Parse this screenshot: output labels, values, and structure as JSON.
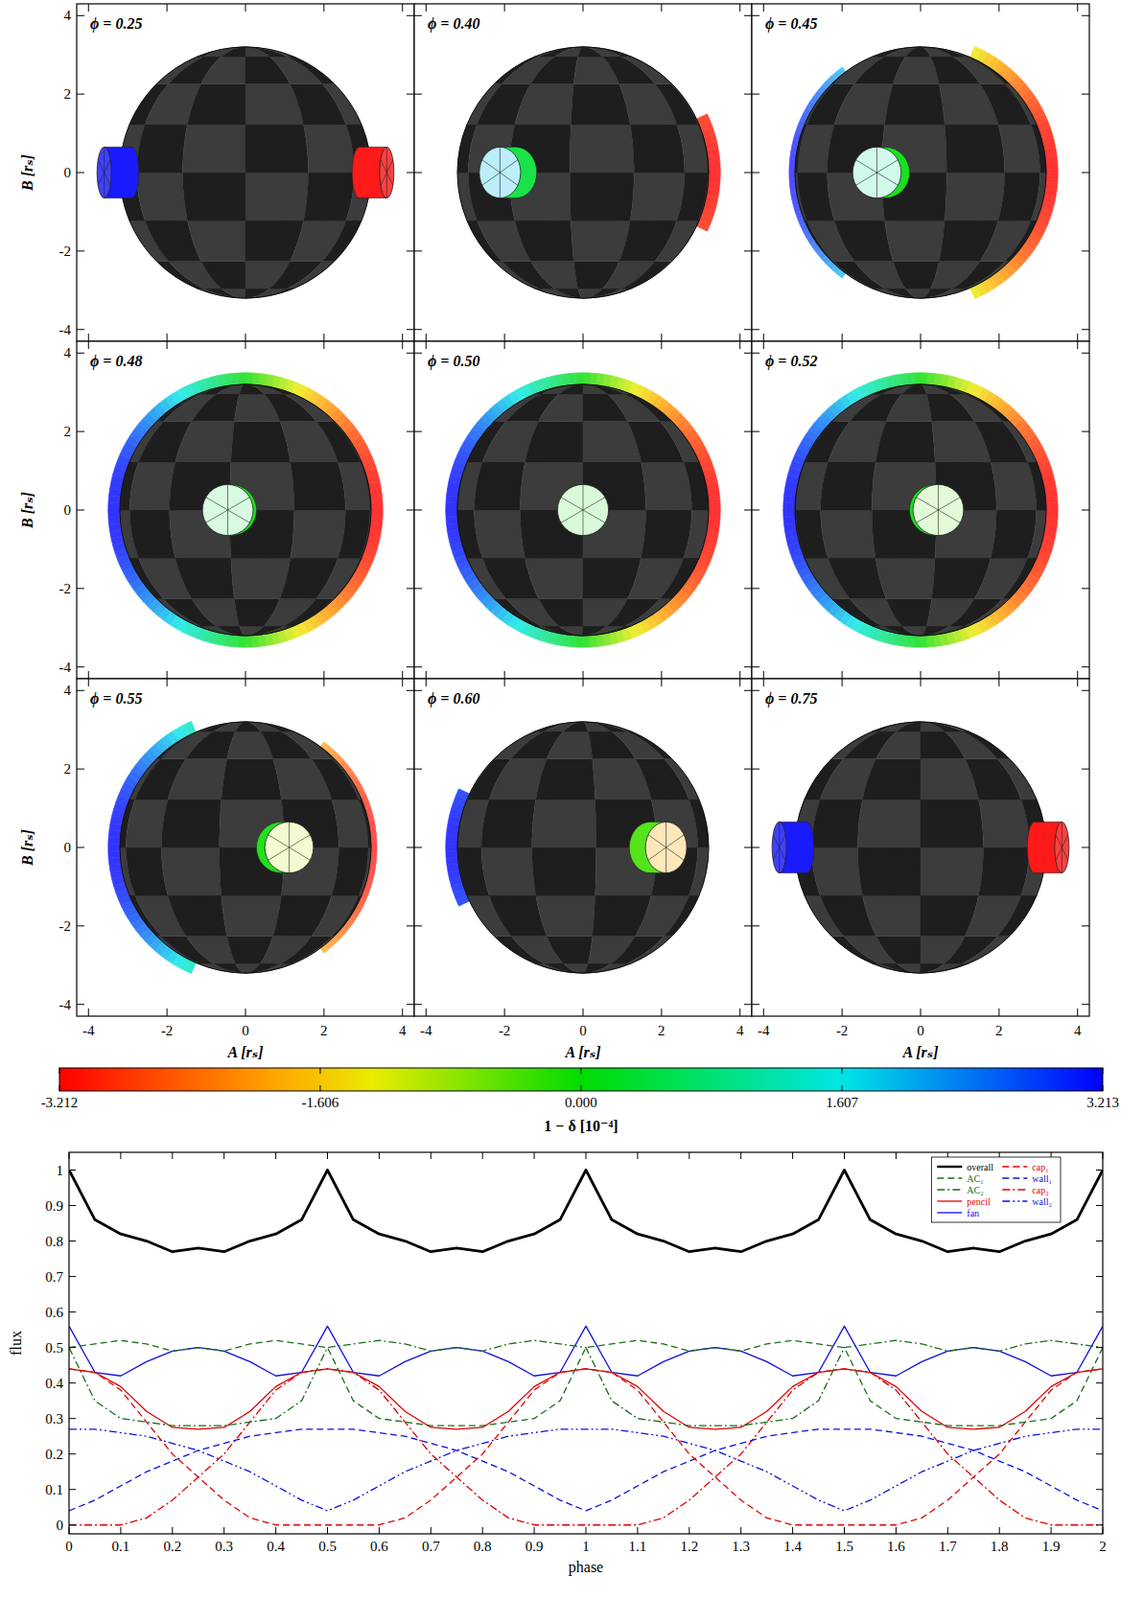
{
  "panels": {
    "items": [
      {
        "label": "ϕ = 0.25",
        "phase": 0.25
      },
      {
        "label": "ϕ = 0.40",
        "phase": 0.4
      },
      {
        "label": "ϕ = 0.45",
        "phase": 0.45
      },
      {
        "label": "ϕ = 0.48",
        "phase": 0.48
      },
      {
        "label": "ϕ = 0.50",
        "phase": 0.5
      },
      {
        "label": "ϕ = 0.52",
        "phase": 0.52
      },
      {
        "label": "ϕ = 0.55",
        "phase": 0.55
      },
      {
        "label": "ϕ = 0.60",
        "phase": 0.6
      },
      {
        "label": "ϕ = 0.75",
        "phase": 0.75
      }
    ],
    "xlabel": "A [rₛ]",
    "ylabel": "B [rₛ]",
    "xlim": [
      -4.3,
      4.3
    ],
    "ylim": [
      -4.3,
      4.3
    ],
    "xticks": [
      -4,
      -2,
      0,
      2,
      4
    ],
    "yticks": [
      -4,
      -2,
      0,
      2,
      4
    ]
  },
  "colorbar": {
    "label": "1 − δ [10⁻⁴]",
    "range": [
      -3.212,
      3.213
    ],
    "ticks": [
      -3.212,
      -1.606,
      {
        "value": 0,
        "label": "0.000"
      },
      1.607,
      3.213
    ]
  },
  "chart_data": {
    "type": "line",
    "xlabel": "phase",
    "ylabel": "flux",
    "x": [
      0,
      0.05,
      0.1,
      0.15,
      0.2,
      0.25,
      0.3,
      0.35,
      0.4,
      0.45,
      0.5,
      0.55,
      0.6,
      0.65,
      0.7,
      0.75,
      0.8,
      0.85,
      0.9,
      0.95,
      1,
      1.05,
      1.1,
      1.15,
      1.2,
      1.25,
      1.3,
      1.35,
      1.4,
      1.45,
      1.5,
      1.55,
      1.6,
      1.65,
      1.7,
      1.75,
      1.8,
      1.85,
      1.9,
      1.95,
      2
    ],
    "xlim": [
      0,
      2
    ],
    "ylim": [
      -0.025,
      1.05
    ],
    "xticks": [
      0,
      0.1,
      0.2,
      0.3,
      0.4,
      0.5,
      0.6,
      0.7,
      0.8,
      0.9,
      1,
      1.1,
      1.2,
      1.3,
      1.4,
      1.5,
      1.6,
      1.7,
      1.8,
      1.9,
      2
    ],
    "yticks": [
      0,
      0.1,
      0.2,
      0.3,
      0.4,
      0.5,
      0.6,
      0.7,
      0.8,
      0.9,
      1
    ],
    "legend": "upper right",
    "series": [
      {
        "name": "overall",
        "color": "#000000",
        "line_style": "solid",
        "values": [
          1.0,
          0.86,
          0.82,
          0.8,
          0.77,
          0.78,
          0.77,
          0.8,
          0.82,
          0.86,
          1.0,
          0.86,
          0.82,
          0.8,
          0.77,
          0.78,
          0.77,
          0.8,
          0.82,
          0.86,
          1.0,
          0.86,
          0.82,
          0.8,
          0.77,
          0.78,
          0.77,
          0.8,
          0.82,
          0.86,
          1.0,
          0.86,
          0.82,
          0.8,
          0.77,
          0.78,
          0.77,
          0.8,
          0.82,
          0.86,
          1.0
        ]
      },
      {
        "name": "AC₁",
        "color": "#1a6e1a",
        "line_style": "dashed",
        "values": [
          0.5,
          0.51,
          0.52,
          0.51,
          0.49,
          0.5,
          0.49,
          0.51,
          0.52,
          0.51,
          0.5,
          0.35,
          0.3,
          0.29,
          0.28,
          0.28,
          0.28,
          0.29,
          0.3,
          0.35,
          0.5,
          0.51,
          0.52,
          0.51,
          0.49,
          0.5,
          0.49,
          0.51,
          0.52,
          0.51,
          0.5,
          0.35,
          0.3,
          0.29,
          0.28,
          0.28,
          0.28,
          0.29,
          0.3,
          0.35,
          0.5
        ]
      },
      {
        "name": "AC₂",
        "color": "#1a6e1a",
        "line_style": "dashdot",
        "values": [
          0.5,
          0.35,
          0.3,
          0.29,
          0.28,
          0.28,
          0.28,
          0.29,
          0.3,
          0.35,
          0.5,
          0.51,
          0.52,
          0.51,
          0.49,
          0.5,
          0.49,
          0.51,
          0.52,
          0.51,
          0.5,
          0.35,
          0.3,
          0.29,
          0.28,
          0.28,
          0.28,
          0.29,
          0.3,
          0.35,
          0.5,
          0.51,
          0.52,
          0.51,
          0.49,
          0.5,
          0.49,
          0.51,
          0.52,
          0.51,
          0.5
        ]
      },
      {
        "name": "pencil",
        "color": "#e00000",
        "line_style": "solid",
        "values": [
          0.44,
          0.43,
          0.39,
          0.32,
          0.275,
          0.27,
          0.275,
          0.32,
          0.39,
          0.43,
          0.44,
          0.43,
          0.39,
          0.32,
          0.275,
          0.27,
          0.275,
          0.32,
          0.39,
          0.43,
          0.44,
          0.43,
          0.39,
          0.32,
          0.275,
          0.27,
          0.275,
          0.32,
          0.39,
          0.43,
          0.44,
          0.43,
          0.39,
          0.32,
          0.275,
          0.27,
          0.275,
          0.32,
          0.39,
          0.43,
          0.44
        ]
      },
      {
        "name": "fan",
        "color": "#1010e0",
        "line_style": "solid",
        "values": [
          0.56,
          0.43,
          0.42,
          0.46,
          0.49,
          0.5,
          0.49,
          0.46,
          0.42,
          0.43,
          0.56,
          0.43,
          0.42,
          0.46,
          0.49,
          0.5,
          0.49,
          0.46,
          0.42,
          0.43,
          0.56,
          0.43,
          0.42,
          0.46,
          0.49,
          0.5,
          0.49,
          0.46,
          0.42,
          0.43,
          0.56,
          0.43,
          0.42,
          0.46,
          0.49,
          0.5,
          0.49,
          0.46,
          0.42,
          0.43,
          0.56
        ]
      },
      {
        "name": "cap₁",
        "color": "#e00000",
        "line_style": "dashed",
        "values": [
          0.44,
          0.43,
          0.38,
          0.29,
          0.2,
          0.135,
          0.07,
          0.02,
          0,
          0,
          0,
          0,
          0,
          0.02,
          0.07,
          0.135,
          0.2,
          0.29,
          0.38,
          0.43,
          0.44,
          0.43,
          0.38,
          0.29,
          0.2,
          0.135,
          0.07,
          0.02,
          0,
          0,
          0,
          0,
          0,
          0.02,
          0.07,
          0.135,
          0.2,
          0.29,
          0.38,
          0.43,
          0.44
        ]
      },
      {
        "name": "wall₁",
        "color": "#1010e0",
        "line_style": "dashed",
        "values": [
          0.04,
          0.07,
          0.11,
          0.15,
          0.18,
          0.21,
          0.23,
          0.25,
          0.26,
          0.27,
          0.27,
          0.27,
          0.26,
          0.25,
          0.23,
          0.21,
          0.18,
          0.15,
          0.11,
          0.07,
          0.04,
          0.07,
          0.11,
          0.15,
          0.18,
          0.21,
          0.23,
          0.25,
          0.26,
          0.27,
          0.27,
          0.27,
          0.26,
          0.25,
          0.23,
          0.21,
          0.18,
          0.15,
          0.11,
          0.07,
          0.04
        ]
      },
      {
        "name": "cap₂",
        "color": "#e00000",
        "line_style": "dashdot",
        "values": [
          0,
          0,
          0,
          0.02,
          0.07,
          0.135,
          0.2,
          0.29,
          0.38,
          0.43,
          0.44,
          0.43,
          0.38,
          0.29,
          0.2,
          0.135,
          0.07,
          0.02,
          0,
          0,
          0,
          0,
          0,
          0.02,
          0.07,
          0.135,
          0.2,
          0.29,
          0.38,
          0.43,
          0.44,
          0.43,
          0.38,
          0.29,
          0.2,
          0.135,
          0.07,
          0.02,
          0,
          0,
          0
        ]
      },
      {
        "name": "wall₂",
        "color": "#1010e0",
        "line_style": "dashdotdot",
        "values": [
          0.27,
          0.27,
          0.26,
          0.25,
          0.23,
          0.21,
          0.18,
          0.15,
          0.11,
          0.07,
          0.04,
          0.07,
          0.11,
          0.15,
          0.18,
          0.21,
          0.23,
          0.25,
          0.26,
          0.27,
          0.27,
          0.27,
          0.26,
          0.25,
          0.23,
          0.21,
          0.18,
          0.15,
          0.11,
          0.07,
          0.04,
          0.07,
          0.11,
          0.15,
          0.18,
          0.21,
          0.23,
          0.25,
          0.26,
          0.27,
          0.27
        ]
      }
    ]
  }
}
